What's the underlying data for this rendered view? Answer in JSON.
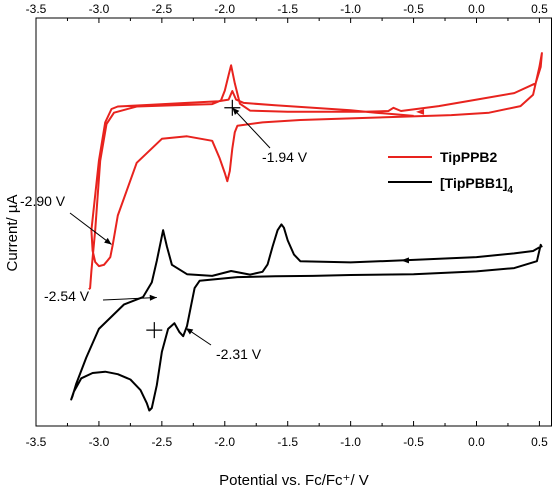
{
  "chart_data": {
    "type": "line",
    "xlabel": "Potential vs. Fc/Fc⁺/ V",
    "ylabel": "Current/ µA",
    "xlim": [
      -3.5,
      0.6
    ],
    "ylim": [
      0,
      100
    ],
    "x_ticks": [
      -3.5,
      -3.0,
      -2.5,
      -2.0,
      -1.5,
      -1.0,
      -0.5,
      0.0,
      0.5
    ],
    "x_tick_labels": [
      "-3.5",
      "-3.0",
      "-2.5",
      "-2.0",
      "-1.5",
      "-1.0",
      "-0.5",
      "0.0",
      "0.5"
    ],
    "y_ticks_shown": false,
    "grid": false,
    "legend_position": "right",
    "series": [
      {
        "name": "TipPPB2",
        "name_sub": "",
        "color": "#e8231e",
        "x": [
          -0.5,
          -0.65,
          -0.8,
          -1.0,
          -1.3,
          -1.6,
          -1.85,
          -1.91,
          -1.94,
          -1.97,
          -2.05,
          -2.3,
          -2.6,
          -2.85,
          -2.9,
          -2.95,
          -3.0,
          -3.06,
          -3.05,
          -3.03,
          -3.0,
          -2.96,
          -2.93,
          -2.91,
          -2.89,
          -2.85,
          -2.7,
          -2.5,
          -2.3,
          -2.1,
          -2.04,
          -2.0,
          -1.98,
          -1.96,
          -1.94,
          -1.92,
          -1.9,
          -1.7,
          -1.4,
          -1.0,
          -0.6,
          -0.2,
          0.1,
          0.35,
          0.45,
          0.5,
          0.52,
          0.51,
          0.47,
          0.3,
          0.0,
          -0.3,
          -0.6,
          -0.66,
          -0.7,
          -0.9,
          -1.2,
          -1.5,
          -1.8,
          -1.88,
          -1.92,
          -1.95,
          -1.97,
          -2.0,
          -2.03,
          -2.1,
          -2.4,
          -2.7,
          -2.88,
          -2.94,
          -2.99,
          -3.03,
          -3.06,
          -3.07,
          -3.08
        ],
        "y": [
          76.0,
          76.4,
          76.8,
          77.4,
          78.0,
          78.6,
          79.2,
          80.0,
          82.1,
          80.0,
          79.6,
          79.2,
          78.7,
          78.3,
          77.7,
          74.4,
          65.0,
          48.0,
          43.0,
          40.2,
          39.2,
          39.5,
          40.6,
          41.4,
          44.5,
          51.6,
          64.5,
          70.4,
          71.0,
          69.9,
          65.6,
          62.0,
          60.0,
          62.5,
          68.0,
          72.0,
          73.6,
          74.4,
          75.0,
          75.4,
          75.8,
          76.2,
          76.8,
          78.4,
          81.2,
          88.0,
          91.4,
          88.0,
          84.0,
          81.6,
          80.0,
          78.4,
          77.2,
          78.0,
          77.2,
          77.0,
          77.0,
          77.0,
          77.3,
          79.0,
          84.0,
          88.4,
          86.0,
          82.2,
          79.8,
          78.9,
          78.6,
          78.3,
          76.8,
          74.0,
          65.0,
          48.0,
          38.0,
          33.8,
          33.5
        ]
      },
      {
        "name": "[TipPBB1]",
        "name_sub": "4",
        "color": "#000000",
        "x": [
          0.5,
          0.45,
          0.3,
          0.0,
          -0.5,
          -1.0,
          -1.4,
          -1.45,
          -1.5,
          -1.53,
          -1.55,
          -1.58,
          -1.62,
          -1.66,
          -1.7,
          -1.8,
          -1.95,
          -2.1,
          -2.3,
          -2.42,
          -2.46,
          -2.49,
          -2.51,
          -2.54,
          -2.58,
          -2.65,
          -2.8,
          -3.0,
          -3.1,
          -3.18,
          -3.21,
          -3.22,
          -3.2,
          -3.14,
          -3.05,
          -2.95,
          -2.85,
          -2.75,
          -2.67,
          -2.62,
          -2.6,
          -2.58,
          -2.54,
          -2.5,
          -2.45,
          -2.4,
          -2.36,
          -2.33,
          -2.3,
          -2.27,
          -2.24,
          -2.2,
          -1.9,
          -1.6,
          -1.3,
          -1.0,
          -0.5,
          0.0,
          0.3,
          0.48,
          0.51,
          0.52
        ],
        "y": [
          43.8,
          42.9,
          42.3,
          41.4,
          40.7,
          40.1,
          40.4,
          42.0,
          45.5,
          48.6,
          49.4,
          48.0,
          44.0,
          39.6,
          37.8,
          37.1,
          38.0,
          36.8,
          37.2,
          39.5,
          44.0,
          48.0,
          45.0,
          40.5,
          35.2,
          31.6,
          29.8,
          23.8,
          16.8,
          10.4,
          7.3,
          6.5,
          8.4,
          11.7,
          13.0,
          13.3,
          12.7,
          11.4,
          8.8,
          5.6,
          3.8,
          4.4,
          10.0,
          18.2,
          23.8,
          25.2,
          23.0,
          22.0,
          24.5,
          29.2,
          33.8,
          35.6,
          36.5,
          36.7,
          36.8,
          37.0,
          37.2,
          37.9,
          38.7,
          40.4,
          44.4,
          43.8
        ]
      }
    ],
    "annotations": [
      {
        "label": "-1.94 V",
        "target": [
          -1.94,
          78.0
        ]
      },
      {
        "label": "-2.90 V",
        "target": [
          -2.9,
          44.5
        ]
      },
      {
        "label": "-2.54 V",
        "target": [
          -2.54,
          31.5
        ]
      },
      {
        "label": "-2.31 V",
        "target": [
          -2.31,
          24.0
        ]
      }
    ],
    "crosshair_markers": [
      {
        "x": -1.94,
        "y": 78.0
      },
      {
        "x": -2.56,
        "y": 23.5
      }
    ]
  }
}
